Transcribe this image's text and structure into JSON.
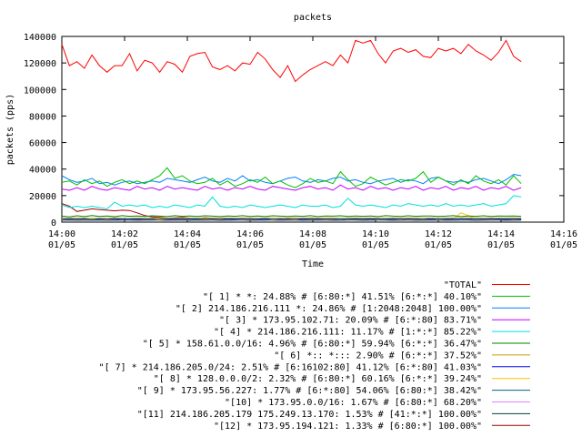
{
  "chart_data": {
    "type": "line",
    "title": "packets",
    "xlabel": "Time",
    "ylabel": "packets (pps)",
    "xlim": [
      "2000-01-05T14:00",
      "2000-01-05T14:16"
    ],
    "ylim": [
      0,
      140000
    ],
    "y_ticks": [
      0,
      20000,
      40000,
      60000,
      80000,
      100000,
      120000,
      140000
    ],
    "x_ticks": [
      {
        "time": "14:00",
        "date": "01/05",
        "minute": 0
      },
      {
        "time": "14:02",
        "date": "01/05",
        "minute": 2
      },
      {
        "time": "14:04",
        "date": "01/05",
        "minute": 4
      },
      {
        "time": "14:06",
        "date": "01/05",
        "minute": 6
      },
      {
        "time": "14:08",
        "date": "01/05",
        "minute": 8
      },
      {
        "time": "14:10",
        "date": "01/05",
        "minute": 10
      },
      {
        "time": "14:12",
        "date": "01/05",
        "minute": 12
      },
      {
        "time": "14:14",
        "date": "01/05",
        "minute": 14
      },
      {
        "time": "14:16",
        "date": "01/05",
        "minute": 16
      }
    ],
    "grid": false,
    "legend_position": "bottom",
    "x_minutes": [
      0,
      0.24,
      0.48,
      0.72,
      0.96,
      1.2,
      1.44,
      1.68,
      1.92,
      2.16,
      2.4,
      2.64,
      2.88,
      3.12,
      3.36,
      3.6,
      3.84,
      4.08,
      4.32,
      4.56,
      4.8,
      5.04,
      5.28,
      5.52,
      5.76,
      6,
      6.24,
      6.48,
      6.72,
      6.96,
      7.2,
      7.44,
      7.68,
      7.92,
      8.16,
      8.4,
      8.64,
      8.88,
      9.12,
      9.36,
      9.6,
      9.84,
      10.08,
      10.32,
      10.56,
      10.8,
      11.04,
      11.28,
      11.52,
      11.76,
      12,
      12.24,
      12.48,
      12.72,
      12.96,
      13.2,
      13.44,
      13.68,
      13.92,
      14.16,
      14.4,
      14.64
    ],
    "series": [
      {
        "name": "\"TOTAL\"",
        "color": "#ff0000",
        "values": [
          134000,
          118000,
          121000,
          116000,
          126000,
          118000,
          113000,
          118000,
          118000,
          127000,
          114000,
          122000,
          120000,
          113000,
          121000,
          119000,
          113000,
          125000,
          127000,
          128000,
          117000,
          115000,
          118000,
          114000,
          120000,
          119000,
          128000,
          123000,
          115000,
          109000,
          118000,
          106000,
          111000,
          115000,
          118000,
          121000,
          118000,
          126000,
          120000,
          137000,
          135000,
          137000,
          127000,
          120000,
          129000,
          131000,
          128000,
          130000,
          125000,
          124000,
          131000,
          129000,
          131000,
          127000,
          134000,
          129000,
          126000,
          122000,
          128000,
          137000,
          125000,
          121000
        ]
      },
      {
        "name": "\"[ 1] * *: 24.88% # [6:80:*] 41.51% [6:*:*] 40.10%\"",
        "color": "#00c000",
        "values": [
          30000,
          31000,
          28000,
          32000,
          29000,
          31000,
          27000,
          30000,
          32000,
          29000,
          31000,
          29000,
          32000,
          35000,
          41000,
          33000,
          35000,
          31000,
          29000,
          30000,
          33000,
          28000,
          31000,
          27000,
          29000,
          32000,
          30000,
          34000,
          29000,
          31000,
          28000,
          26000,
          29000,
          33000,
          30000,
          31000,
          29000,
          38000,
          32000,
          27000,
          29000,
          34000,
          31000,
          28000,
          30000,
          32000,
          31000,
          33000,
          38000,
          30000,
          34000,
          31000,
          28000,
          32000,
          29000,
          35000,
          31000,
          29000,
          32000,
          28000,
          35000,
          29000
        ]
      },
      {
        "name": "\"[ 2] 214.186.216.111 *: 24.86% # [1:2048:2048] 100.00%\"",
        "color": "#0080ff",
        "values": [
          35000,
          32000,
          30000,
          31000,
          33000,
          29000,
          30000,
          28000,
          30000,
          31000,
          29000,
          30000,
          31000,
          30000,
          33000,
          32000,
          31000,
          30000,
          32000,
          34000,
          31000,
          30000,
          33000,
          31000,
          35000,
          31000,
          32000,
          30000,
          29000,
          31000,
          33000,
          34000,
          31000,
          30000,
          32000,
          31000,
          33000,
          34000,
          31000,
          32000,
          30000,
          29000,
          31000,
          32000,
          33000,
          30000,
          32000,
          31000,
          29000,
          33000,
          34000,
          31000,
          30000,
          31000,
          30000,
          32000,
          33000,
          31000,
          29000,
          32000,
          36000,
          35000
        ]
      },
      {
        "name": "\"[ 3] * 173.95.102.71: 20.09% # [6:*:80] 83.71%\"",
        "color": "#c000ff",
        "values": [
          25000,
          24000,
          26000,
          24000,
          27000,
          25000,
          24000,
          26000,
          25000,
          24000,
          27000,
          25000,
          26000,
          24000,
          27000,
          25000,
          26000,
          25000,
          24000,
          27000,
          25000,
          26000,
          24000,
          26000,
          25000,
          27000,
          25000,
          24000,
          27000,
          26000,
          25000,
          24000,
          26000,
          27000,
          25000,
          26000,
          24000,
          28000,
          25000,
          26000,
          24000,
          27000,
          25000,
          26000,
          24000,
          26000,
          25000,
          27000,
          24000,
          26000,
          25000,
          27000,
          24000,
          26000,
          25000,
          27000,
          24000,
          26000,
          25000,
          27000,
          24000,
          26000
        ]
      },
      {
        "name": "\"[ 4] * 214.186.216.111: 11.17% # [1:*:*] 85.22%\"",
        "color": "#00e0e0",
        "values": [
          13000,
          11000,
          12000,
          11000,
          12000,
          11000,
          10000,
          15000,
          12000,
          13000,
          12000,
          13000,
          11000,
          12000,
          11000,
          13000,
          12000,
          11000,
          13000,
          12000,
          19000,
          12000,
          11000,
          12000,
          11000,
          13000,
          12000,
          11000,
          12000,
          13000,
          12000,
          11000,
          13000,
          12000,
          12000,
          13000,
          11000,
          12000,
          18000,
          13000,
          12000,
          13000,
          12000,
          11000,
          13000,
          12000,
          14000,
          13000,
          12000,
          13000,
          12000,
          14000,
          12000,
          13000,
          12000,
          13000,
          14000,
          12000,
          13000,
          14000,
          20000,
          19000
        ]
      },
      {
        "name": "\"[ 5] * 158.61.0.0/16: 4.96% # [6:80:*] 59.94% [6:*:*] 36.47%\"",
        "color": "#008000",
        "values": [
          4500,
          4000,
          4800,
          4200,
          5000,
          4300,
          4600,
          4100,
          4900,
          4400,
          4700,
          4300,
          4800,
          4500,
          4200,
          4900,
          4400,
          4600,
          4300,
          4800,
          4500,
          4200,
          4700,
          4400,
          4900,
          4300,
          4600,
          4200,
          4800,
          4500,
          4300,
          4700,
          4400,
          4900,
          4200,
          4600,
          4500,
          4800,
          4300,
          4700,
          4400,
          4600,
          4200,
          4900,
          4500,
          4300,
          4800,
          4400,
          4600,
          4700,
          4300,
          4500,
          4900,
          4200,
          4600,
          4400,
          4800,
          4300,
          4700,
          4500,
          4600,
          4400
        ]
      },
      {
        "name": "\"[ 6] *:: *::: 2.90% # [6:*:*] 37.52%\"",
        "color": "#c0a000",
        "values": [
          2800,
          3000,
          2900,
          3100,
          2700,
          3000,
          2800,
          3200,
          2900,
          2800,
          3100,
          2900,
          3000,
          2700,
          3100,
          2800,
          3000,
          2900,
          3100,
          2800,
          3000,
          2700,
          3100,
          2900,
          2800,
          3000,
          2900,
          3100,
          2800,
          3000,
          2900,
          2700,
          3100,
          2800,
          3000,
          2900,
          3100,
          2800,
          3000,
          2900,
          2800,
          3100,
          2900,
          3000,
          2800,
          3100,
          2900,
          3000,
          2700,
          3100,
          2800,
          3000,
          2900,
          3100,
          2800,
          3000,
          2900,
          2800,
          3100,
          3000,
          2900,
          3000
        ]
      },
      {
        "name": "\"[ 7] * 214.186.205.0/24: 2.51% # [6:16102:80] 41.12% [6:*:80] 41.03%\"",
        "color": "#0000ff",
        "values": [
          2500,
          2300,
          2600,
          2400,
          2700,
          2300,
          2500,
          2600,
          2400,
          2500,
          2300,
          2600,
          2400,
          2700,
          2500,
          2300,
          2600,
          2400,
          2500,
          2700,
          2400,
          2600,
          2300,
          2500,
          2400,
          2600,
          2500,
          2300,
          2700,
          2400,
          2600,
          2500,
          2300,
          2600,
          2400,
          2500,
          2700,
          2400,
          2600,
          2300,
          2500,
          2400,
          2600,
          2500,
          2300,
          2700,
          2400,
          2600,
          2500,
          2300,
          2600,
          2400,
          2500,
          2700,
          2400,
          2600,
          2300,
          2500,
          2400,
          2600,
          2500,
          2400
        ]
      },
      {
        "name": "\"[ 8] * 128.0.0.0/2: 2.32% # [6:80:*] 60.16% [6:*:*] 39.24%\"",
        "color": "#ffc000",
        "values": [
          2200,
          2400,
          2300,
          2100,
          2500,
          2300,
          2200,
          2400,
          2300,
          2500,
          2200,
          2400,
          2300,
          2100,
          2400,
          2300,
          2500,
          2200,
          2400,
          2300,
          2200,
          2500,
          2300,
          2400,
          2200,
          2300,
          2400,
          2500,
          2200,
          2300,
          2400,
          2200,
          2500,
          2300,
          2400,
          2200,
          2300,
          2500,
          2400,
          2200,
          2300,
          2400,
          2200,
          2500,
          2300,
          2400,
          2200,
          2300,
          2500,
          2400,
          2200,
          2300,
          2400,
          7000,
          5000,
          2300,
          2200,
          2400,
          2300,
          2500,
          2200,
          2400
        ]
      },
      {
        "name": "\"[ 9] * 173.95.56.227: 1.77% # [6:*:80] 54.06% [6:80:*] 38.42%\"",
        "color": "#006080",
        "values": [
          1800,
          1700,
          1900,
          1600,
          1800,
          1700,
          1900,
          1800,
          1600,
          1900,
          1700,
          1800,
          1600,
          1900,
          1800,
          1700,
          1900,
          1600,
          1800,
          1700,
          1900,
          1800,
          1600,
          1700,
          1900,
          1800,
          1700,
          1600,
          1900,
          1800,
          1700,
          1900,
          1600,
          1800,
          1700,
          1900,
          1800,
          1600,
          1900,
          1700,
          1800,
          1600,
          1900,
          1800,
          1700,
          1600,
          1900,
          1800,
          1700,
          1900,
          1600,
          1800,
          1700,
          1900,
          1800,
          1600,
          1700,
          1900,
          1800,
          1700,
          1800,
          1700
        ]
      },
      {
        "name": "\"[10] * 173.95.0.0/16: 1.67% # [6:80:*] 68.20%\"",
        "color": "#e080ff",
        "values": [
          1600,
          1700,
          1500,
          1800,
          1600,
          1700,
          1500,
          1600,
          1800,
          1700,
          1500,
          1600,
          1700,
          1800,
          1500,
          1600,
          1700,
          1500,
          1800,
          1600,
          1700,
          1500,
          1600,
          1800,
          1700,
          1500,
          1600,
          1700,
          1800,
          1500,
          1600,
          1700,
          1500,
          1800,
          1600,
          1700,
          1500,
          1600,
          1800,
          1700,
          1500,
          1600,
          1700,
          1800,
          1500,
          1600,
          1700,
          1500,
          1800,
          1600,
          1700,
          1500,
          1600,
          1800,
          1700,
          1500,
          1600,
          1700,
          1800,
          1500,
          1600,
          1700
        ]
      },
      {
        "name": "\"[11] 214.186.205.179 175.249.13.170: 1.53% # [41:*:*] 100.00%\"",
        "color": "#004040",
        "values": [
          1400,
          1500,
          1300,
          1600,
          1400,
          1500,
          1300,
          1400,
          1600,
          1500,
          1300,
          1400,
          1500,
          1600,
          1300,
          1400,
          1500,
          1300,
          1600,
          1400,
          1500,
          1300,
          1400,
          1600,
          1500,
          1300,
          1400,
          1500,
          1600,
          1300,
          1400,
          1500,
          1300,
          1600,
          1400,
          1500,
          1300,
          1400,
          1600,
          1500,
          1300,
          1400,
          1500,
          1600,
          1300,
          1400,
          1500,
          1300,
          1600,
          1400,
          1500,
          1300,
          1400,
          1600,
          1500,
          1300,
          1400,
          1500,
          1600,
          1300,
          1400,
          1500
        ]
      },
      {
        "name": "\"[12] * 173.95.194.121: 1.33% # [6:80:*] 100.00%\"",
        "color": "#a00000",
        "values": [
          14000,
          12000,
          8000,
          9000,
          10000,
          9500,
          9000,
          8500,
          9000,
          8800,
          7000,
          5000,
          4000,
          3500,
          3000,
          3200,
          3500,
          3000,
          2800,
          3200,
          3000,
          2900,
          3100,
          2800,
          3000,
          2900,
          2700,
          3000,
          2800,
          2600,
          3000,
          2900,
          2800,
          3100,
          2900,
          2800,
          3000,
          2700,
          2900,
          3100,
          2800,
          3000,
          2900,
          2700,
          3100,
          2800,
          3000,
          2900,
          2800,
          3000,
          2700,
          2900,
          3100,
          2800,
          3000,
          2900,
          2800,
          3000,
          2700,
          2900,
          3000,
          2800
        ]
      }
    ]
  }
}
